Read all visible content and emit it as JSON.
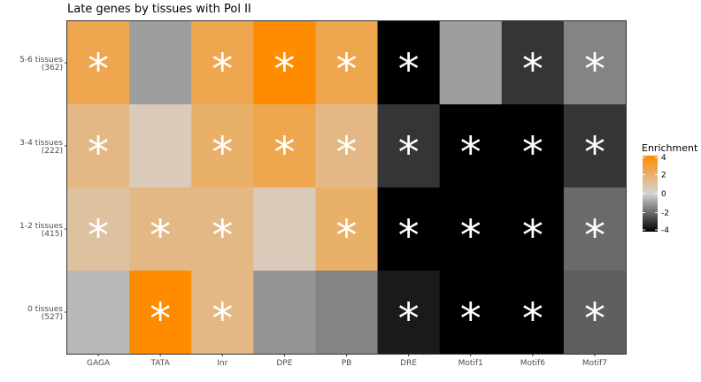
{
  "chart_data": {
    "type": "heatmap",
    "title": "Late genes by tissues with Pol II",
    "xlabel": "",
    "ylabel": "",
    "categories": [
      "GAGA",
      "TATA",
      "Inr",
      "DPE",
      "PB",
      "DRE",
      "Motif1",
      "Motif6",
      "Motif7"
    ],
    "rows": [
      {
        "label": "5-6 tissues",
        "count": "(362)"
      },
      {
        "label": "3-4 tissues",
        "count": "(222)"
      },
      {
        "label": "1-2 tissues",
        "count": "(415)"
      },
      {
        "label": "0 tissues",
        "count": "(527)"
      }
    ],
    "values": [
      [
        2.5,
        -1.0,
        2.5,
        4.0,
        2.5,
        -4.0,
        -1.0,
        -3.0,
        -1.5
      ],
      [
        1.5,
        0.5,
        2.0,
        2.5,
        1.5,
        -3.0,
        -4.0,
        -4.0,
        -3.0
      ],
      [
        1.0,
        1.5,
        1.5,
        0.5,
        2.0,
        -4.0,
        -4.0,
        -4.0,
        -2.0
      ],
      [
        -0.5,
        4.0,
        1.5,
        -1.2,
        -1.5,
        -3.5,
        -4.0,
        -4.0,
        -2.2
      ]
    ],
    "significant": [
      [
        true,
        false,
        true,
        true,
        true,
        true,
        false,
        true,
        true
      ],
      [
        true,
        false,
        true,
        true,
        true,
        true,
        true,
        true,
        true
      ],
      [
        true,
        true,
        true,
        false,
        true,
        true,
        true,
        true,
        true
      ],
      [
        false,
        true,
        true,
        false,
        false,
        true,
        true,
        true,
        true
      ]
    ],
    "significance_marker": "*",
    "legend": {
      "title": "Enrichment",
      "ticks": [
        4,
        2,
        0,
        -2,
        -4
      ],
      "range": [
        -4,
        4
      ],
      "placement": "right"
    },
    "colors": {
      "high": "#ff8c00",
      "mid": "#d3d3d3",
      "low": "#000000"
    }
  }
}
